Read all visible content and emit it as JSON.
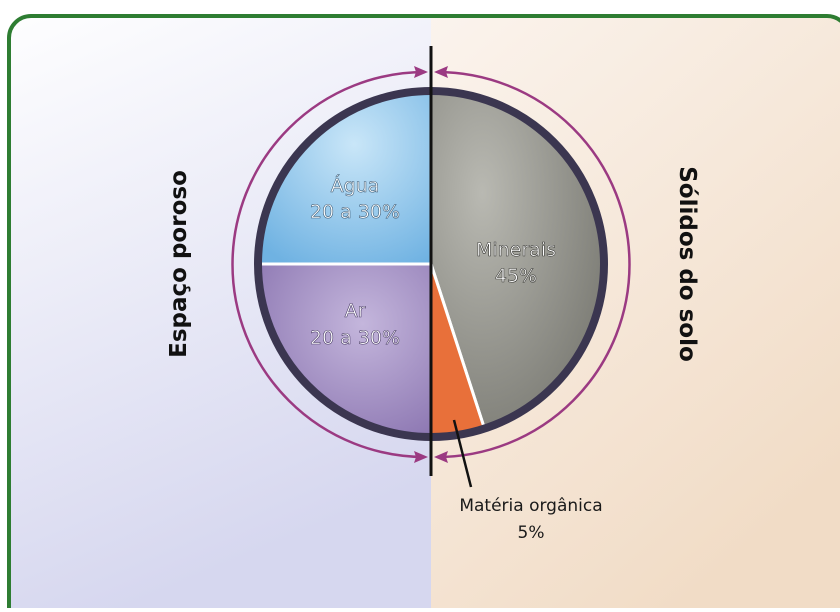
{
  "chart_data": {
    "type": "pie",
    "side_labels": {
      "left": "Espaço poroso",
      "right": "Sólidos do solo"
    },
    "slices": [
      {
        "key": "agua",
        "label": "Água",
        "value_text": "20 a 30%",
        "value": 25,
        "group": "Espaço poroso",
        "color": "#8cc4ea"
      },
      {
        "key": "ar",
        "label": "Ar",
        "value_text": "20 a 30%",
        "value": 25,
        "group": "Espaço poroso",
        "color": "#9a88bc"
      },
      {
        "key": "minerais",
        "label": "Minerais",
        "value_text": "45%",
        "value": 45,
        "group": "Sólidos do solo",
        "color": "#8e8e86"
      },
      {
        "key": "materia",
        "label": "Matéria orgânica",
        "value_text": "5%",
        "value": 5,
        "group": "Sólidos do solo",
        "color": "#e8703a"
      }
    ]
  },
  "colors": {
    "frame_border": "#2e7d32",
    "left_panel_top": "#ffffff",
    "left_panel_bottom": "#d6d7ef",
    "right_panel_top": "#fbf4ee",
    "right_panel_bottom": "#f1dcc6",
    "pie_outline": "#3b3650",
    "outer_ring": "#9b3a82",
    "divider": "#111111",
    "label_text": "#ffffff",
    "side_text": "#111111"
  }
}
